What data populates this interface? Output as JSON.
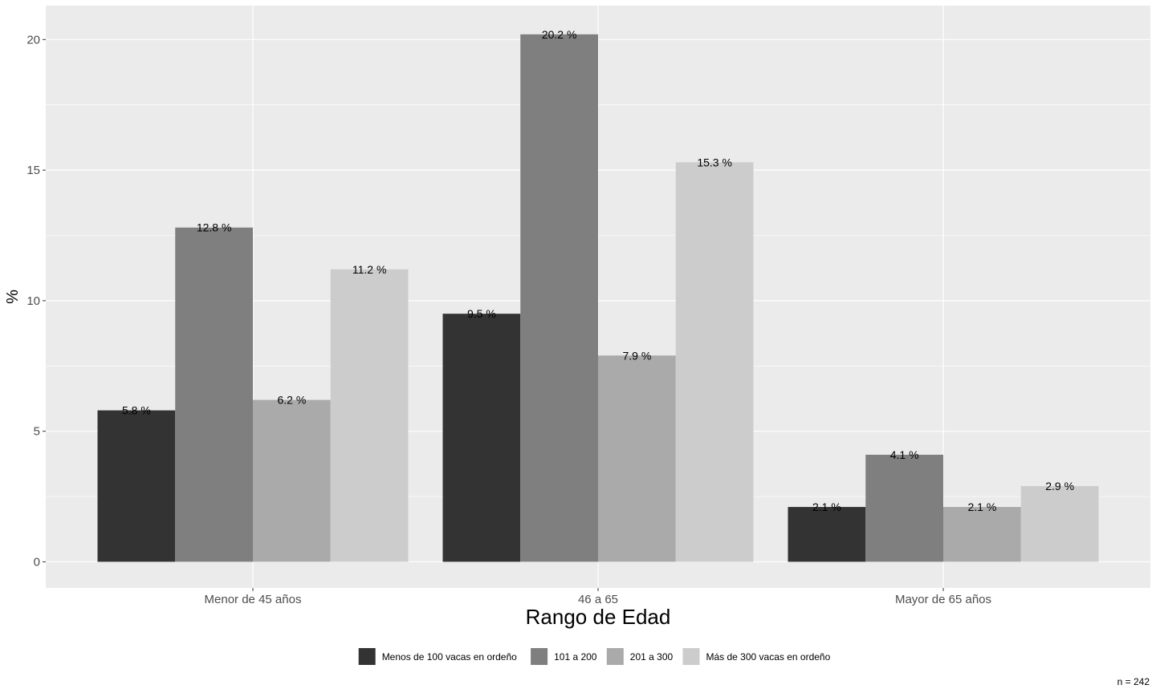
{
  "chart_data": {
    "type": "bar",
    "xlabel": "Rango de Edad",
    "ylabel": "%",
    "ylim": [
      -1,
      21.3
    ],
    "yticks": [
      0,
      5,
      10,
      15,
      20
    ],
    "grid": true,
    "legend_position": "bottom",
    "caption": "n = 242",
    "categories": [
      "Menor de 45 años",
      "46 a 65",
      "Mayor de 65 años"
    ],
    "series": [
      {
        "name": "Menos de 100 vacas en ordeño",
        "color": "#333333",
        "values": [
          5.8,
          9.5,
          2.1
        ],
        "labels": [
          "5.8 %",
          "9.5 %",
          "2.1 %"
        ]
      },
      {
        "name": "101 a 200",
        "color": "#7f7f7f",
        "values": [
          12.8,
          20.2,
          4.1
        ],
        "labels": [
          "12.8 %",
          "20.2 %",
          "4.1 %"
        ]
      },
      {
        "name": "201 a 300",
        "color": "#aaaaaa",
        "values": [
          6.2,
          7.9,
          2.1
        ],
        "labels": [
          "6.2 %",
          "7.9 %",
          "2.1 %"
        ]
      },
      {
        "name": "Más de 300 vacas en ordeño",
        "color": "#cccccc",
        "values": [
          11.2,
          15.3,
          2.9
        ],
        "labels": [
          "11.2 %",
          "15.3 %",
          "2.9 %"
        ]
      }
    ]
  }
}
